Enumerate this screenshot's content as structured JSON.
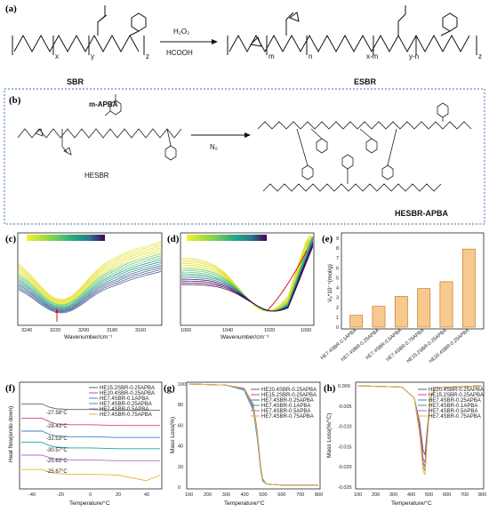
{
  "panel_a": {
    "label": "(a)",
    "reagent_top": "H₂O₂",
    "reagent_bottom": "HCOOH",
    "left_name": "SBR",
    "right_name": "ESBR",
    "subscripts_left": [
      "x",
      "y",
      "z"
    ],
    "subscripts_right": [
      "m",
      "n",
      "x-m",
      "y-n",
      "z"
    ]
  },
  "panel_b": {
    "label": "(b)",
    "reagent": "m-APBA",
    "condition": "N₂",
    "left_name": "HESBR",
    "right_name": "HESBR-APBA"
  },
  "panel_c": {
    "label": "(c)",
    "xlabel": "Wavenumber/cm⁻¹",
    "ticks": [
      "3240",
      "3220",
      "3200",
      "3180",
      "3160"
    ],
    "marker": "3220"
  },
  "panel_d": {
    "label": "(d)",
    "xlabel": "Wavenumber/cm⁻¹",
    "ticks": [
      "1060",
      "1040",
      "1020",
      "1000"
    ]
  },
  "panel_e": {
    "label": "(e)",
    "ylabel": "Vₑ*10⁻⁴(mol/g)",
    "yticks": [
      "0",
      "1",
      "2",
      "3",
      "4",
      "5",
      "6",
      "7",
      "8",
      "9"
    ]
  },
  "panel_f": {
    "label": "(f)",
    "ylabel": "Heat flow(endo down)",
    "xlabel": "Temperature/°C",
    "xticks": [
      "-40",
      "-20",
      "0",
      "20",
      "40"
    ],
    "legend": [
      "HE15.2SBR-0.25APBA",
      "HE20.4SBR-0.25APBA",
      "HE7.4SBR-0.1APBA",
      "HE7.4SBR-0.25APBA",
      "HE7.4SBR-0.5APBA",
      "HE7.4SBR-0.75APBA"
    ],
    "annotations": [
      "-27.58°C",
      "-28.43°C",
      "-32.53°C",
      "-30.57°C",
      "-25.63°C",
      "-25.67°C"
    ]
  },
  "panel_g": {
    "label": "(g)",
    "ylabel": "Mass Loss(%)",
    "xlabel": "Temperature/°C",
    "xticks": [
      "100",
      "200",
      "300",
      "400",
      "500",
      "600",
      "700",
      "800"
    ],
    "yticks": [
      "0",
      "20",
      "40",
      "60",
      "80",
      "100"
    ],
    "legend": [
      "HE20.4SBR-0.25APBA",
      "HE15.2SBR-0.25APBA",
      "HE7.4SBR-0.25APBA",
      "HE7.4SBR-0.1APBA",
      "HE7.4SBR-0.5APBA",
      "HE7.4SBR-0.75APBA"
    ]
  },
  "panel_h": {
    "label": "(h)",
    "ylabel": "Mass Loss(%/°C)",
    "xlabel": "Temperature/°C",
    "xticks": [
      "100",
      "200",
      "300",
      "400",
      "500",
      "600",
      "700",
      "800"
    ],
    "yticks": [
      "0.000",
      "-0.005",
      "-0.010",
      "-0.015",
      "-0.020",
      "-0.025"
    ],
    "legend": [
      "HE20.4SBR-0.25APBA",
      "HE15.2SBR-0.25APBA",
      "HE7.4SBR-0.25APBA",
      "HE7.4SBR-0.1APBA",
      "HE7.4SBR-0.5APBA",
      "HE7.4SBR-0.75APBA"
    ]
  },
  "series_colors": [
    "#5b5b7a",
    "#e0417a",
    "#3a7fd0",
    "#20a6a0",
    "#b768d8",
    "#e6b62a"
  ],
  "chart_data": [
    {
      "type": "bar",
      "panel": "e",
      "categories": [
        "HE7.4SBR-0.1APBA",
        "HE7.4SBR-0.25APBA",
        "HE7.4SBR-0.5APBA",
        "HE7.4SBR-0.75APBA",
        "HE15.2SBR-0.25APBA",
        "HE20.4SBR-0.25APBA"
      ],
      "values": [
        1.2,
        2.1,
        3.1,
        3.9,
        4.6,
        7.9
      ],
      "ylim": [
        0,
        9
      ],
      "ylabel": "Vₑ*10⁻⁴(mol/g)"
    },
    {
      "type": "line",
      "panel": "g",
      "xlabel": "Temperature/°C",
      "ylabel": "Mass Loss(%)",
      "xlim": [
        100,
        800
      ],
      "ylim": [
        0,
        100
      ],
      "x": [
        100,
        300,
        400,
        450,
        470,
        490,
        500,
        520,
        600,
        800
      ],
      "series": [
        {
          "name": "HE20.4SBR-0.25APBA",
          "values": [
            100,
            99,
            96,
            80,
            55,
            20,
            8,
            3,
            2,
            2
          ]
        },
        {
          "name": "HE15.2SBR-0.25APBA",
          "values": [
            100,
            99,
            95,
            78,
            52,
            18,
            7,
            3,
            2,
            2
          ]
        },
        {
          "name": "HE7.4SBR-0.25APBA",
          "values": [
            100,
            99,
            95,
            76,
            50,
            17,
            6,
            3,
            2,
            2
          ]
        },
        {
          "name": "HE7.4SBR-0.1APBA",
          "values": [
            100,
            99,
            94,
            74,
            48,
            16,
            6,
            3,
            2,
            2
          ]
        },
        {
          "name": "HE7.4SBR-0.5APBA",
          "values": [
            100,
            99,
            95,
            77,
            51,
            17,
            7,
            3,
            2,
            2
          ]
        },
        {
          "name": "HE7.4SBR-0.75APBA",
          "values": [
            100,
            99,
            96,
            79,
            53,
            19,
            7,
            3,
            2,
            2
          ]
        }
      ]
    },
    {
      "type": "line",
      "panel": "h",
      "xlabel": "Temperature/°C",
      "ylabel": "Mass Loss(%/°C)",
      "xlim": [
        100,
        800
      ],
      "ylim": [
        -0.025,
        0.0
      ],
      "x": [
        100,
        350,
        420,
        450,
        470,
        480,
        490,
        510,
        540,
        800
      ],
      "series": [
        {
          "name": "HE20.4SBR-0.25APBA",
          "values": [
            0,
            -0.0003,
            -0.003,
            -0.009,
            -0.016,
            -0.017,
            -0.012,
            -0.003,
            -0.0005,
            0
          ]
        },
        {
          "name": "HE15.2SBR-0.25APBA",
          "values": [
            0,
            -0.0003,
            -0.003,
            -0.01,
            -0.018,
            -0.019,
            -0.013,
            -0.003,
            -0.0005,
            0
          ]
        },
        {
          "name": "HE7.4SBR-0.25APBA",
          "values": [
            0,
            -0.0003,
            -0.003,
            -0.011,
            -0.019,
            -0.02,
            -0.014,
            -0.003,
            -0.0005,
            0
          ]
        },
        {
          "name": "HE7.4SBR-0.1APBA",
          "values": [
            0,
            -0.0003,
            -0.003,
            -0.012,
            -0.02,
            -0.021,
            -0.014,
            -0.003,
            -0.0005,
            0
          ]
        },
        {
          "name": "HE7.4SBR-0.5APBA",
          "values": [
            0,
            -0.0003,
            -0.003,
            -0.011,
            -0.02,
            -0.021,
            -0.015,
            -0.003,
            -0.0005,
            0
          ]
        },
        {
          "name": "HE7.4SBR-0.75APBA",
          "values": [
            0,
            -0.0003,
            -0.003,
            -0.012,
            -0.021,
            -0.022,
            -0.015,
            -0.003,
            -0.0005,
            0
          ]
        }
      ]
    },
    {
      "type": "line",
      "panel": "f",
      "xlabel": "Temperature/°C",
      "ylabel": "Heat flow(endo down)",
      "xlim": [
        -50,
        50
      ],
      "x": [
        -50,
        -35,
        -30,
        -25,
        -15,
        0,
        20,
        40,
        50
      ],
      "series": [
        {
          "name": "HE15.2SBR-0.25APBA",
          "values": [
            5.2,
            5.2,
            5.0,
            4.9,
            4.85,
            4.85,
            4.8,
            4.8,
            4.8
          ]
        },
        {
          "name": "HE20.4SBR-0.25APBA",
          "values": [
            4.3,
            4.3,
            4.1,
            3.95,
            3.9,
            3.9,
            3.85,
            3.85,
            3.85
          ]
        },
        {
          "name": "HE7.4SBR-0.1APBA",
          "values": [
            3.5,
            3.5,
            3.3,
            3.2,
            3.15,
            3.15,
            3.1,
            3.1,
            3.1
          ]
        },
        {
          "name": "HE7.4SBR-0.25APBA",
          "values": [
            2.8,
            2.8,
            2.6,
            2.5,
            2.45,
            2.45,
            2.4,
            2.4,
            2.4
          ]
        },
        {
          "name": "HE7.4SBR-0.5APBA",
          "values": [
            2.0,
            2.0,
            1.85,
            1.75,
            1.7,
            1.7,
            1.65,
            1.65,
            1.65
          ]
        },
        {
          "name": "HE7.4SBR-0.75APBA",
          "values": [
            1.1,
            1.1,
            0.95,
            0.85,
            0.8,
            0.8,
            0.75,
            0.4,
            0.75
          ]
        }
      ]
    }
  ]
}
